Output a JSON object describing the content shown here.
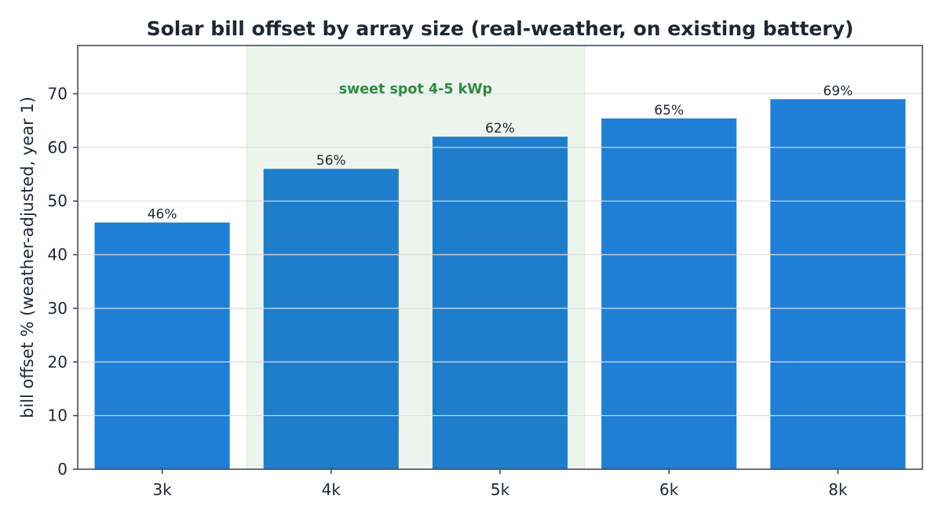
{
  "chart_data": {
    "type": "bar",
    "title": "Solar bill offset by array size (real-weather, on existing battery)",
    "xlabel": "",
    "ylabel": "bill offset % (weather-adjusted, year 1)",
    "categories": [
      "3k",
      "4k",
      "5k",
      "6k",
      "8k"
    ],
    "values": [
      46,
      56,
      62,
      65.4,
      69
    ],
    "value_labels": [
      "46%",
      "56%",
      "62%",
      "65%",
      "69%"
    ],
    "ylim": [
      0,
      79
    ],
    "yticks": [
      0,
      10,
      20,
      30,
      40,
      50,
      60,
      70
    ],
    "grid": true,
    "highlight": {
      "label": "sweet spot 4-5 kWp",
      "from_category": "4k",
      "to_category": "5k"
    },
    "colors": {
      "bar": "#1f7ed6",
      "bar_in_highlight": "#1f7ecb",
      "highlight_band": "#edf4ee",
      "highlight_text": "#2e8b3e",
      "grid": "#d9dee3",
      "axis": "#3a4049",
      "text": "#1f2733"
    }
  }
}
